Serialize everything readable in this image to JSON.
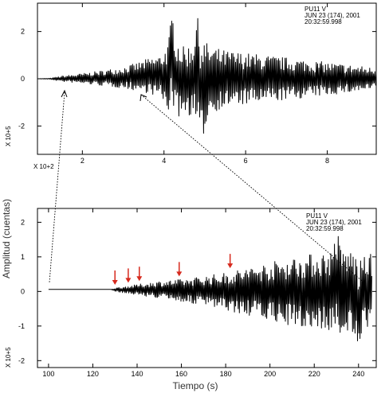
{
  "chart_data": [
    {
      "type": "line",
      "panel": "top",
      "xlim": [
        0.9,
        9.2
      ],
      "ylim": [
        -3.2,
        3.2
      ],
      "xticks": [
        {
          "value": 2,
          "label": "2"
        },
        {
          "value": 4,
          "label": "4"
        },
        {
          "value": 6,
          "label": "6"
        },
        {
          "value": 8,
          "label": "8"
        }
      ],
      "yticks": [
        {
          "value": -2,
          "label": "-2"
        },
        {
          "value": 0,
          "label": "0"
        },
        {
          "value": 2,
          "label": "2"
        }
      ],
      "x_multiplier": "X 10+2",
      "y_multiplier": "X 10+5",
      "header": [
        "PU11  V",
        "JUN 23 (174), 2001",
        "20:32:59.998"
      ],
      "series": [
        {
          "x": [
            0.9,
            1.2,
            1.5,
            2.0,
            2.5,
            3.0,
            3.3,
            3.6,
            3.9,
            4.1,
            4.2,
            4.3,
            4.5,
            4.7,
            4.8,
            4.9,
            5.1,
            5.5,
            6.0,
            6.5,
            7.0,
            7.5,
            8.0,
            8.5,
            9.0,
            9.2
          ],
          "upper": [
            0,
            0.02,
            0.12,
            0.22,
            0.35,
            0.5,
            0.65,
            0.85,
            1.0,
            1.5,
            2.9,
            1.8,
            1.3,
            1.6,
            2.8,
            1.9,
            1.4,
            1.2,
            1.1,
            1.0,
            0.9,
            0.8,
            0.7,
            0.6,
            0.5,
            0.45
          ],
          "lower": [
            0,
            -0.02,
            -0.12,
            -0.2,
            -0.3,
            -0.4,
            -0.5,
            -0.6,
            -0.8,
            -1.4,
            -1.0,
            -1.7,
            -1.5,
            -1.6,
            -2.1,
            -2.9,
            -1.5,
            -1.2,
            -1.1,
            -1.0,
            -0.9,
            -0.8,
            -0.7,
            -0.6,
            -0.5,
            -0.45
          ]
        }
      ]
    },
    {
      "type": "line",
      "panel": "bottom",
      "xlim": [
        95,
        248
      ],
      "ylim": [
        -2.2,
        2.4
      ],
      "xticks": [
        {
          "value": 100,
          "label": "100"
        },
        {
          "value": 120,
          "label": "120"
        },
        {
          "value": 140,
          "label": "140"
        },
        {
          "value": 160,
          "label": "160"
        },
        {
          "value": 180,
          "label": "180"
        },
        {
          "value": 200,
          "label": "200"
        },
        {
          "value": 220,
          "label": "220"
        },
        {
          "value": 240,
          "label": "240"
        }
      ],
      "yticks": [
        {
          "value": -2,
          "label": "-2"
        },
        {
          "value": -1,
          "label": "-1"
        },
        {
          "value": 0,
          "label": "0"
        },
        {
          "value": 1,
          "label": "1"
        },
        {
          "value": 2,
          "label": "2"
        }
      ],
      "y_multiplier": "X 10+5",
      "xlabel": "Tiempo (s)",
      "ylabel": "Amplitud (cuentas)",
      "header": [
        "PU11  V",
        "JUN 23 (174), 2001",
        "20:32:59.998"
      ],
      "arrows_x": [
        130,
        136,
        141,
        159,
        182
      ],
      "arrow_color": "#d62a1e",
      "series": [
        {
          "x": [
            100,
            128,
            130,
            135,
            140,
            150,
            160,
            170,
            180,
            190,
            200,
            210,
            220,
            228,
            230,
            232,
            236,
            238,
            240,
            242,
            246
          ],
          "upper": [
            0.06,
            0.06,
            0.1,
            0.15,
            0.2,
            0.3,
            0.35,
            0.45,
            0.55,
            0.7,
            0.85,
            1.0,
            1.1,
            1.2,
            1.9,
            1.3,
            1.2,
            1.25,
            0.8,
            1.0,
            1.1
          ],
          "lower": [
            0.06,
            0.06,
            0.0,
            -0.05,
            -0.1,
            -0.2,
            -0.3,
            -0.4,
            -0.55,
            -0.7,
            -0.85,
            -1.0,
            -1.1,
            -1.15,
            -1.3,
            -1.25,
            -1.2,
            -1.3,
            -2.2,
            -1.1,
            -1.0
          ]
        }
      ]
    }
  ]
}
